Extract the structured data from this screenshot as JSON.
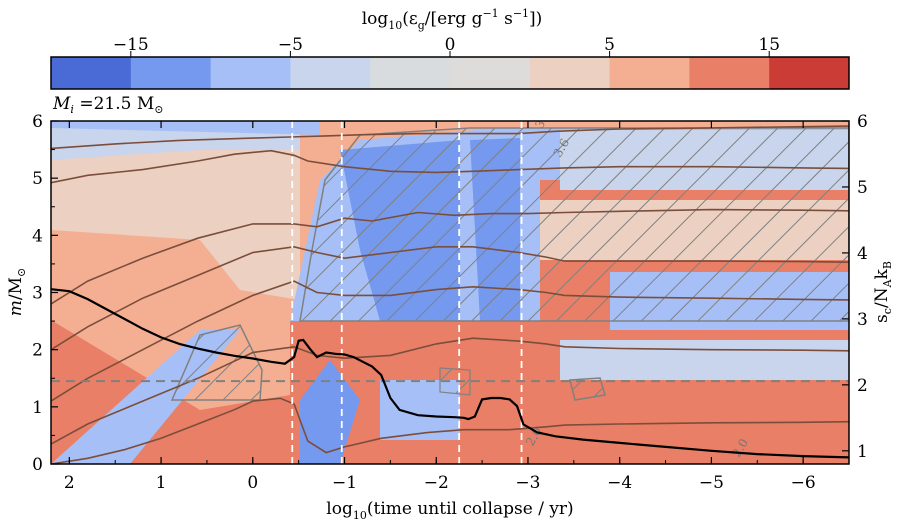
{
  "chart_data": {
    "type": "heatmap",
    "title": "",
    "colorbar": {
      "label_base": "log",
      "label_sub": "10",
      "label_main": "(ε",
      "label_g": "g",
      "label_units": "/[erg g",
      "label_sup1": "−1",
      "label_s": " s",
      "label_sup2": "−1",
      "label_end": "])",
      "ticks": [
        "−15",
        "−5",
        "0",
        "5",
        "15"
      ],
      "colors": [
        "#4a6bd6",
        "#7599ee",
        "#a6c0f7",
        "#c8d5ec",
        "#d9dcdf",
        "#dddcda",
        "#ecd0c1",
        "#f4af92",
        "#e87f66",
        "#cb3c36"
      ]
    },
    "annotation": {
      "m": "M",
      "i": "i",
      "text": " =21.5 M",
      "sun": "⊙"
    },
    "xaxis": {
      "label": "log",
      "label_sub": "10",
      "label_rest": "(time until collapse / yr)",
      "range": [
        2.2,
        -6.5
      ],
      "ticks": [
        {
          "value": 2,
          "label": "2"
        },
        {
          "value": 1,
          "label": "1"
        },
        {
          "value": 0,
          "label": "0"
        },
        {
          "value": -1,
          "label": "−1"
        },
        {
          "value": -2,
          "label": "−2"
        },
        {
          "value": -3,
          "label": "−3"
        },
        {
          "value": -4,
          "label": "−4"
        },
        {
          "value": -5,
          "label": "−5"
        },
        {
          "value": -6,
          "label": "−6"
        }
      ]
    },
    "yaxis_left": {
      "label_m": "m",
      "label_rest": "/M",
      "label_sun": "⊙",
      "range": [
        0,
        6
      ],
      "ticks": [
        "0",
        "1",
        "2",
        "3",
        "4",
        "5",
        "6"
      ]
    },
    "yaxis_right": {
      "label_s": "s",
      "label_c": "c",
      "label_rest": "/N",
      "label_A": "A",
      "label_k": "k",
      "label_B": "B",
      "range": [
        0.8,
        6
      ],
      "ticks": [
        "1",
        "2",
        "3",
        "4",
        "5",
        "6"
      ]
    },
    "vertical_lines_x": [
      -0.43,
      -0.97,
      -2.25,
      -2.93
    ],
    "horizontal_line_m": 1.45,
    "central_entropy": {
      "name": "central entropy",
      "x": [
        2.2,
        2.0,
        1.8,
        1.6,
        1.4,
        1.2,
        1.0,
        0.8,
        0.6,
        0.4,
        0.2,
        0.0,
        -0.2,
        -0.35,
        -0.45,
        -0.5,
        -0.55,
        -0.62,
        -0.7,
        -0.8,
        -0.9,
        -1.0,
        -1.1,
        -1.2,
        -1.3,
        -1.4,
        -1.5,
        -1.6,
        -1.8,
        -2.0,
        -2.2,
        -2.3,
        -2.35,
        -2.42,
        -2.5,
        -2.6,
        -2.7,
        -2.8,
        -2.88,
        -2.95,
        -3.1,
        -3.3,
        -3.6,
        -4.0,
        -4.5,
        -5.0,
        -5.5,
        -6.0,
        -6.5
      ],
      "s": [
        3.45,
        3.42,
        3.3,
        3.15,
        3.0,
        2.85,
        2.72,
        2.62,
        2.55,
        2.49,
        2.44,
        2.4,
        2.35,
        2.32,
        2.42,
        2.67,
        2.68,
        2.55,
        2.42,
        2.49,
        2.47,
        2.46,
        2.42,
        2.35,
        2.28,
        2.15,
        1.8,
        1.62,
        1.54,
        1.52,
        1.51,
        1.5,
        1.48,
        1.52,
        1.78,
        1.8,
        1.8,
        1.78,
        1.68,
        1.4,
        1.28,
        1.22,
        1.17,
        1.12,
        1.06,
        1.0,
        0.95,
        0.92,
        0.9
      ]
    },
    "mass_contours": [
      {
        "x": [
          2.2,
          1.5,
          0.8,
          0.0,
          -0.4,
          -0.8,
          -1.2,
          -1.8,
          -2.3,
          -2.9,
          -3.3,
          -4.0,
          -5.0,
          -6.0,
          -6.5
        ],
        "m": [
          5.52,
          5.6,
          5.66,
          5.7,
          5.72,
          5.74,
          5.76,
          5.78,
          5.78,
          5.78,
          5.82,
          5.86,
          5.88,
          5.9,
          5.91
        ]
      },
      {
        "x": [
          2.2,
          1.8,
          1.2,
          0.6,
          0.2,
          -0.2,
          -0.45,
          -0.6,
          -1.0,
          -1.5,
          -2.0,
          -2.4,
          -2.9,
          -3.4,
          -4.0,
          -5.0,
          -6.0,
          -6.5
        ],
        "m": [
          4.92,
          5.05,
          5.15,
          5.3,
          5.42,
          5.48,
          5.4,
          5.3,
          5.2,
          5.12,
          5.1,
          5.12,
          5.15,
          5.18,
          5.2,
          5.2,
          5.18,
          5.17
        ]
      },
      {
        "x": [
          2.2,
          1.8,
          1.2,
          0.6,
          0.0,
          -0.45,
          -0.7,
          -1.0,
          -1.3,
          -1.8,
          -2.2,
          -2.6,
          -3.0,
          -3.4,
          -4.0,
          -5.0,
          -6.0,
          -6.5
        ],
        "m": [
          2.8,
          3.2,
          3.6,
          3.95,
          4.2,
          4.2,
          4.15,
          4.3,
          4.25,
          4.4,
          4.35,
          4.38,
          4.38,
          4.4,
          4.42,
          4.45,
          4.44,
          4.43
        ]
      },
      {
        "x": [
          2.2,
          1.8,
          1.2,
          0.6,
          0.0,
          -0.45,
          -0.7,
          -1.0,
          -1.5,
          -2.0,
          -2.4,
          -2.9,
          -3.2,
          -3.4,
          -4.0,
          -5.0,
          -6.0,
          -6.5
        ],
        "m": [
          2.0,
          2.4,
          2.9,
          3.3,
          3.7,
          3.8,
          3.7,
          3.6,
          3.7,
          3.8,
          3.8,
          3.7,
          3.62,
          3.55,
          3.55,
          3.55,
          3.54,
          3.53
        ]
      },
      {
        "x": [
          2.2,
          1.8,
          1.2,
          0.6,
          0.0,
          -0.45,
          -0.7,
          -1.0,
          -1.5,
          -2.0,
          -2.4,
          -2.9,
          -3.2,
          -3.4,
          -4.0,
          -5.0,
          -6.0,
          -6.5
        ],
        "m": [
          1.1,
          1.5,
          2.0,
          2.5,
          2.95,
          3.2,
          3.0,
          2.95,
          2.95,
          3.05,
          3.1,
          3.05,
          3.0,
          2.95,
          2.92,
          2.9,
          2.88,
          2.87
        ]
      },
      {
        "x": [
          2.2,
          1.8,
          1.2,
          0.6,
          0.0,
          -0.45,
          -0.7,
          -1.0,
          -1.5,
          -2.0,
          -2.4,
          -2.9,
          -3.2,
          -3.4,
          -4.0,
          -5.0,
          -6.0,
          -6.5
        ],
        "m": [
          0.35,
          0.7,
          1.1,
          1.5,
          1.95,
          2.05,
          1.9,
          1.85,
          1.9,
          2.1,
          2.2,
          2.15,
          2.1,
          2.05,
          2.02,
          2.0,
          1.99,
          1.98
        ]
      },
      {
        "x": [
          2.2,
          1.8,
          1.4,
          1.0,
          0.6,
          0.2,
          0.0,
          -0.3,
          -0.45,
          -0.6,
          -0.8,
          -1.0,
          -1.4,
          -1.9,
          -2.3,
          -2.8,
          -3.2,
          -3.4,
          -4.0,
          -5.0,
          -6.0,
          -6.5
        ],
        "m": [
          0.0,
          0.1,
          0.25,
          0.45,
          0.7,
          0.95,
          1.1,
          1.15,
          1.05,
          0.4,
          0.2,
          0.3,
          0.45,
          0.55,
          0.6,
          0.6,
          0.65,
          0.68,
          0.7,
          0.72,
          0.73,
          0.74
        ]
      }
    ],
    "contour_labels": [
      {
        "x": -3.15,
        "m": 5.85,
        "text": "3.6"
      },
      {
        "x": -3.35,
        "m": 5.35,
        "text": "3.6"
      },
      {
        "x": -3.05,
        "m": 0.3,
        "text": "2.0"
      },
      {
        "x": -5.3,
        "m": 0.1,
        "text": "2.0"
      }
    ]
  }
}
